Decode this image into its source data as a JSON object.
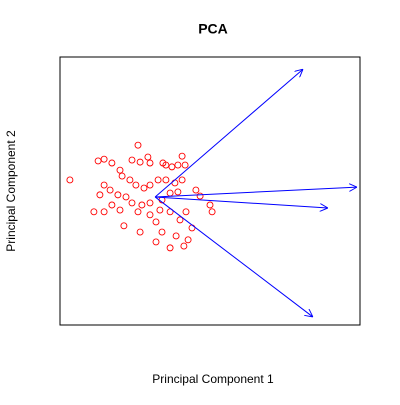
{
  "chart_data": {
    "type": "scatter",
    "title": "PCA",
    "xlabel": "Principal Component 1",
    "ylabel": "Principal Component 2",
    "xlim": [
      -5,
      5
    ],
    "ylim": [
      -4.5,
      4.5
    ],
    "color": "#ff0000",
    "x": [
      -4.67,
      -3.73,
      -3.53,
      -3.27,
      -3.0,
      -2.4,
      -2.6,
      -2.33,
      -2.07,
      -2.0,
      -1.57,
      -1.47,
      -1.27,
      -0.93,
      -1.07,
      -0.83,
      -2.93,
      -2.67,
      -2.47,
      -3.53,
      -3.33,
      -3.67,
      -3.07,
      -2.8,
      -2.2,
      -2.0,
      -1.73,
      -1.47,
      -1.17,
      -0.93,
      -1.33,
      -1.07,
      -1.6,
      -2.0,
      -2.27,
      -2.6,
      -3.27,
      -3.87,
      -3.53,
      -3.0,
      -2.4,
      -2.0,
      -1.67,
      -1.33,
      -0.8,
      -0.47,
      -0.33,
      0.0,
      0.07,
      -1.0,
      -1.8,
      -2.87,
      -2.33,
      -1.6,
      -1.13,
      -0.6,
      -1.33,
      -0.87,
      -1.8,
      -0.73
    ],
    "y": [
      0.37,
      1.01,
      1.07,
      0.94,
      0.7,
      1.54,
      1.04,
      0.97,
      1.14,
      0.94,
      0.94,
      0.87,
      0.81,
      1.17,
      0.87,
      0.87,
      0.5,
      0.37,
      0.2,
      0.2,
      0.03,
      -0.13,
      -0.13,
      -0.2,
      0.1,
      0.2,
      0.37,
      0.37,
      0.27,
      0.37,
      -0.07,
      -0.03,
      -0.3,
      -0.4,
      -0.47,
      -0.4,
      -0.47,
      -0.7,
      -0.7,
      -0.64,
      -0.7,
      -0.8,
      -0.64,
      -0.7,
      -0.7,
      0.03,
      -0.17,
      -0.47,
      -0.7,
      -0.97,
      -1.04,
      -1.17,
      -1.38,
      -1.38,
      -1.51,
      -1.24,
      -1.91,
      -1.85,
      -1.71,
      -1.64
    ],
    "arrows": {
      "color": "#0000ff",
      "x0": -1.83,
      "y0": -0.2,
      "x": [
        3.1,
        4.9,
        3.93,
        3.43
      ],
      "y": [
        4.09,
        0.13,
        -0.57,
        -4.23
      ]
    }
  }
}
